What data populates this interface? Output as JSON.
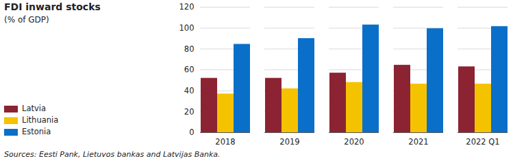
{
  "chart_data": {
    "type": "bar",
    "title": "FDI inward stocks",
    "subtitle": "(% of GDP)",
    "caption": "Sources: Eesti Pank, Lietuvos bankas and Latvijas Banka.",
    "categories": [
      "2018",
      "2019",
      "2020",
      "2021",
      "2022 Q1"
    ],
    "series": [
      {
        "name": "Latvia",
        "color": "#8b2332",
        "values": [
          52,
          52,
          57,
          64.5,
          63
        ]
      },
      {
        "name": "Lithuania",
        "color": "#f5c200",
        "values": [
          37,
          42,
          48,
          46.5,
          46.5
        ]
      },
      {
        "name": "Estonia",
        "color": "#0a6fc9",
        "values": [
          84.5,
          90,
          103,
          99.5,
          101.5
        ]
      }
    ],
    "ylim": [
      0,
      120
    ],
    "yticks": [
      0,
      20,
      40,
      60,
      80,
      100,
      120
    ],
    "grid": true,
    "legend": "left"
  }
}
